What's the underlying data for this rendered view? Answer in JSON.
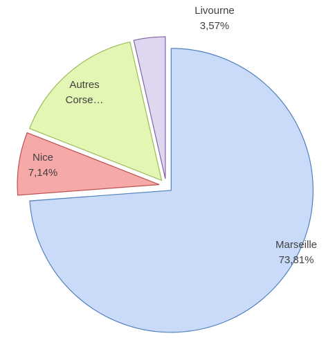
{
  "chart_data": {
    "type": "pie",
    "categories": [
      "Marseille",
      "Nice",
      "Autres Corse…",
      "Livourne"
    ],
    "values": [
      73.81,
      7.14,
      15.48,
      3.57
    ],
    "value_labels": [
      "73,81%",
      "7,14%",
      null,
      "3,57%"
    ],
    "colors": [
      "#c9dbf8",
      "#f6a9a9",
      "#e4f6b4",
      "#dfd7f0"
    ],
    "stroke_colors": [
      "#4f81bd",
      "#c0504d",
      "#9bbb59",
      "#8064a2"
    ]
  }
}
